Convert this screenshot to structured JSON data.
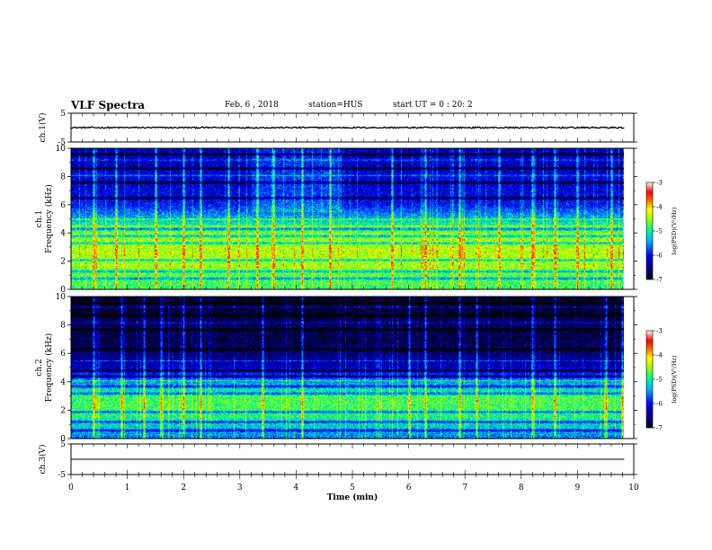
{
  "header": {
    "title": "VLF Spectra",
    "date": "Feb. 6 , 2018",
    "station": "station=HUS",
    "start_ut": "start UT = 0 : 20: 2"
  },
  "chart_data": {
    "type": "heatmap",
    "xlabel": "Time (min)",
    "xlim": [
      0,
      10
    ],
    "xticks": [
      "0",
      "1",
      "2",
      "3",
      "4",
      "5",
      "6",
      "7",
      "8",
      "9",
      "10"
    ],
    "data_end_min": 9.83,
    "panels": [
      {
        "id": "ch1-voltage",
        "type": "line",
        "ylabel": "ch.1(V)",
        "ylim": [
          -5,
          5
        ],
        "yticks": [
          "5",
          "-5"
        ],
        "level": 0,
        "noise_amplitude": 0.25
      },
      {
        "id": "ch1-spectrogram",
        "type": "heatmap",
        "ylabel_channel": "ch.1",
        "ylabel": "Frequency (kHz)",
        "ylim": [
          0,
          10
        ],
        "yticks": [
          "0",
          "2",
          "4",
          "6",
          "8",
          "10"
        ],
        "colorbar": {
          "label": "log(PSD)(V²/Hz)",
          "range": [
            -7,
            -3
          ],
          "ticks": [
            "-3",
            "-4",
            "-5",
            "-6",
            "-7"
          ]
        },
        "background_level_by_kHz": [
          [
            0,
            -4.9
          ],
          [
            1,
            -4.7
          ],
          [
            2,
            -4.4
          ],
          [
            3,
            -4.4
          ],
          [
            4,
            -4.6
          ],
          [
            5,
            -5.3
          ],
          [
            6,
            -6.0
          ],
          [
            7,
            -6.2
          ],
          [
            8,
            -6.2
          ],
          [
            9,
            -6.3
          ],
          [
            10,
            -6.3
          ]
        ],
        "dark_bands_kHz": [
          0.8,
          1.3,
          2.1,
          3.3,
          3.8,
          4.3,
          6.5,
          7.6,
          8.6,
          9.6
        ],
        "bright_lines_kHz": [
          4.5,
          5.0,
          8.1,
          9.2
        ],
        "vertical_impulses_min": [
          0.4,
          0.8,
          1.5,
          2.0,
          2.3,
          2.8,
          3.3,
          3.6,
          4.1,
          4.6,
          5.7,
          6.3,
          6.9,
          7.6,
          8.2,
          8.6,
          9.0,
          9.6
        ]
      },
      {
        "id": "ch2-spectrogram",
        "type": "heatmap",
        "ylabel_channel": "ch.2",
        "ylabel": "Frequency (kHz)",
        "ylim": [
          0,
          10
        ],
        "yticks": [
          "0",
          "2",
          "4",
          "6",
          "8",
          "10"
        ],
        "colorbar": {
          "label": "log(PSD)(V²/Hz)",
          "range": [
            -7,
            -3
          ],
          "ticks": [
            "-3",
            "-4",
            "-5",
            "-6",
            "-7"
          ]
        },
        "background_level_by_kHz": [
          [
            0,
            -5.6
          ],
          [
            1,
            -5.2
          ],
          [
            2,
            -4.8
          ],
          [
            3,
            -4.8
          ],
          [
            4,
            -5.5
          ],
          [
            5,
            -6.3
          ],
          [
            6,
            -6.6
          ],
          [
            7,
            -6.8
          ],
          [
            8,
            -6.7
          ],
          [
            9,
            -6.9
          ],
          [
            10,
            -6.9
          ]
        ],
        "dark_bands_kHz": [
          0.6,
          1.2,
          1.9,
          3.2,
          3.7,
          4.4,
          4.8,
          6.3,
          7.7,
          8.7,
          9.6
        ],
        "bright_lines_kHz": [
          4.1,
          5.5,
          8.2,
          9.3
        ],
        "vertical_impulses_min": [
          0.4,
          0.9,
          1.3,
          1.6,
          2.0,
          2.3,
          3.4,
          4.1,
          6.0,
          6.3,
          6.9,
          7.2,
          8.2,
          8.6,
          9.5,
          9.8
        ]
      },
      {
        "id": "ch3-voltage",
        "type": "line",
        "ylabel": "ch.3(V)",
        "ylim": [
          -5,
          5
        ],
        "yticks": [
          "5",
          "-5"
        ],
        "level": 0,
        "noise_amplitude": 0.0
      }
    ]
  }
}
